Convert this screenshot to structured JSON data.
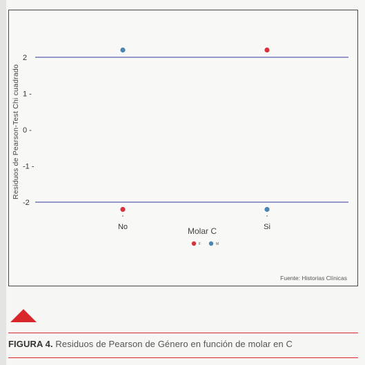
{
  "chart_data": {
    "type": "scatter",
    "ylabel": "Residuos de Pearson-Test Chi cuadrado",
    "xlabel": "Molar C",
    "categories": [
      "No",
      "Si"
    ],
    "yticks": [
      2,
      1,
      0,
      -1,
      -2
    ],
    "ytick_labels": [
      "2",
      "1 -",
      "0 -",
      "-1 -",
      "-2"
    ],
    "ylim": [
      -2.4,
      2.6
    ],
    "reference_lines": [
      2.0,
      -2.0
    ],
    "series": [
      {
        "name": "F",
        "color": "#d8323c",
        "values": [
          -2.2,
          2.2
        ]
      },
      {
        "name": "M",
        "color": "#4a86b3",
        "values": [
          2.2,
          -2.2
        ]
      }
    ],
    "line_color": "#5a5fb0",
    "legend_position": "bottom-center",
    "grid": false,
    "source_note": "Fuente: Historias Clínicas"
  },
  "figure_caption": {
    "prefix": "FIGURA 4.",
    "text": " Residuos de Pearson de Género en función de molar en C"
  },
  "accent_color": "#d9262b"
}
